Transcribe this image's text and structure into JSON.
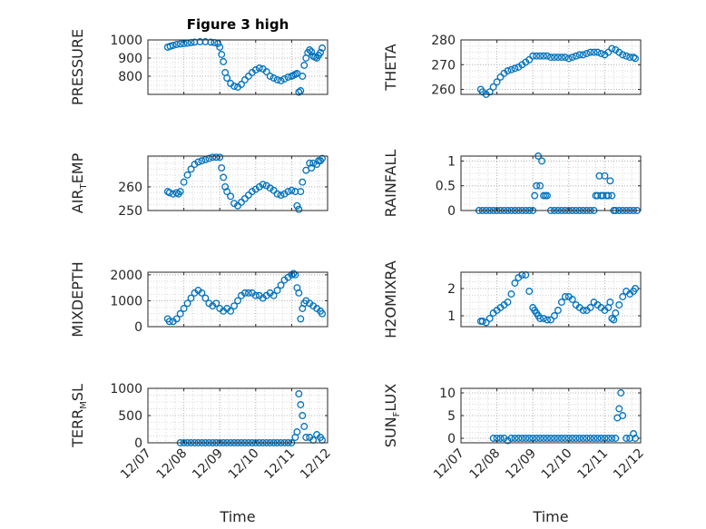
{
  "chart_data": [
    {
      "type": "scatter",
      "ylabel": "PRESSURE",
      "title": "Figure 3 high",
      "ylim": [
        700,
        1000
      ],
      "yticks": [
        800,
        900,
        1000
      ],
      "xrange": [
        "12/07",
        "12/12"
      ],
      "xlabel": "",
      "grid": true,
      "marker": "open-circle",
      "color": "#0072BD",
      "x": [
        7.55,
        7.62,
        7.7,
        7.8,
        7.9,
        8.0,
        8.1,
        8.2,
        8.3,
        8.45,
        8.6,
        8.75,
        8.85,
        8.95,
        9.0,
        9.05,
        9.1,
        9.15,
        9.2,
        9.3,
        9.4,
        9.5,
        9.6,
        9.7,
        9.8,
        9.9,
        10.0,
        10.1,
        10.2,
        10.3,
        10.4,
        10.5,
        10.6,
        10.7,
        10.8,
        10.9,
        11.0,
        11.05,
        11.1,
        11.15,
        11.2,
        11.25,
        11.3,
        11.35,
        11.4,
        11.45,
        11.5,
        11.55,
        11.6,
        11.65,
        11.7,
        11.75,
        11.8,
        11.85
      ],
      "y": [
        960,
        965,
        970,
        975,
        978,
        980,
        982,
        985,
        988,
        990,
        990,
        988,
        985,
        980,
        960,
        920,
        880,
        820,
        790,
        760,
        745,
        740,
        755,
        780,
        800,
        820,
        835,
        845,
        840,
        825,
        800,
        790,
        780,
        775,
        785,
        795,
        800,
        805,
        810,
        815,
        712,
        720,
        800,
        860,
        900,
        930,
        945,
        935,
        910,
        905,
        900,
        915,
        930,
        955
      ]
    },
    {
      "type": "scatter",
      "ylabel": "THETA",
      "ylim": [
        258,
        280
      ],
      "yticks": [
        260,
        270,
        280
      ],
      "xrange": [
        "12/07",
        "12/12"
      ],
      "xlabel": "",
      "grid": true,
      "marker": "open-circle",
      "color": "#0072BD",
      "x": [
        7.55,
        7.6,
        7.7,
        7.8,
        7.9,
        8.0,
        8.1,
        8.2,
        8.3,
        8.4,
        8.5,
        8.6,
        8.7,
        8.8,
        8.9,
        9.0,
        9.1,
        9.2,
        9.3,
        9.4,
        9.5,
        9.6,
        9.7,
        9.8,
        9.9,
        10.0,
        10.1,
        10.2,
        10.3,
        10.4,
        10.5,
        10.6,
        10.7,
        10.8,
        10.9,
        11.0,
        11.1,
        11.2,
        11.3,
        11.4,
        11.5,
        11.6,
        11.7,
        11.8,
        11.85
      ],
      "y": [
        260,
        259,
        258,
        259,
        261,
        263,
        265,
        266.5,
        267.5,
        268,
        268.5,
        269,
        270,
        271,
        272,
        273.5,
        273.5,
        273.5,
        273.5,
        273.5,
        273,
        273,
        273,
        273,
        273,
        272.5,
        273,
        273.5,
        274,
        274,
        274.5,
        275,
        275,
        275,
        274.5,
        274,
        275,
        276.5,
        276,
        275,
        274,
        273.5,
        273,
        273,
        272.5
      ]
    },
    {
      "type": "scatter",
      "ylabel": "AIR_TEMP",
      "ylabel_display": {
        "main": "AIR",
        "sub": "T",
        "rest": "EMP"
      },
      "ylim": [
        250,
        273
      ],
      "yticks": [
        250,
        260
      ],
      "xrange": [
        "12/07",
        "12/12"
      ],
      "xlabel": "",
      "grid": true,
      "marker": "open-circle",
      "color": "#0072BD",
      "x": [
        7.55,
        7.6,
        7.7,
        7.8,
        7.85,
        7.9,
        8.0,
        8.1,
        8.2,
        8.3,
        8.4,
        8.5,
        8.6,
        8.7,
        8.8,
        8.9,
        9.0,
        9.05,
        9.1,
        9.15,
        9.2,
        9.3,
        9.4,
        9.5,
        9.6,
        9.7,
        9.8,
        9.9,
        10.0,
        10.1,
        10.2,
        10.3,
        10.4,
        10.5,
        10.6,
        10.7,
        10.8,
        10.9,
        11.0,
        11.1,
        11.15,
        11.2,
        11.25,
        11.3,
        11.4,
        11.5,
        11.55,
        11.6,
        11.7,
        11.75,
        11.8,
        11.85
      ],
      "y": [
        258,
        257.5,
        257,
        257.5,
        257,
        258,
        262,
        265,
        267.5,
        269.5,
        270.5,
        271,
        271.5,
        272,
        272.5,
        272.5,
        272.5,
        268,
        264,
        260,
        258,
        256,
        253,
        252,
        253.5,
        255,
        256.5,
        258,
        259,
        260,
        261,
        260.5,
        259.5,
        258.5,
        257,
        256.5,
        257,
        258,
        258.5,
        258,
        252,
        250.5,
        258,
        262,
        267,
        270,
        268,
        270,
        269.5,
        271,
        271,
        272
      ]
    },
    {
      "type": "scatter",
      "ylabel": "RAINFALL",
      "ylim": [
        0,
        1.1
      ],
      "yticks": [
        0,
        0.5,
        1
      ],
      "xrange": [
        "12/07",
        "12/12"
      ],
      "xlabel": "",
      "grid": true,
      "marker": "open-circle",
      "color": "#0072BD",
      "x": [
        7.5,
        7.6,
        7.7,
        7.8,
        7.9,
        8.0,
        8.1,
        8.2,
        8.3,
        8.4,
        8.5,
        8.6,
        8.7,
        8.8,
        8.9,
        9.0,
        9.05,
        9.1,
        9.15,
        9.2,
        9.25,
        9.3,
        9.35,
        9.4,
        9.5,
        9.6,
        9.7,
        9.8,
        9.9,
        10.0,
        10.1,
        10.2,
        10.3,
        10.4,
        10.5,
        10.6,
        10.7,
        10.75,
        10.8,
        10.85,
        10.9,
        10.95,
        11.0,
        11.05,
        11.1,
        11.15,
        11.2,
        11.25,
        11.3,
        11.4,
        11.5,
        11.6,
        11.7,
        11.8,
        11.9
      ],
      "y": [
        0,
        0,
        0,
        0,
        0,
        0,
        0,
        0,
        0,
        0,
        0,
        0,
        0,
        0,
        0,
        0,
        0.3,
        0.5,
        1.1,
        0.5,
        1.0,
        0.3,
        0.3,
        0.3,
        0,
        0,
        0,
        0,
        0,
        0,
        0,
        0,
        0,
        0,
        0,
        0,
        0,
        0.3,
        0.3,
        0.7,
        0.3,
        0.3,
        0.7,
        0.3,
        0.3,
        0.6,
        0.3,
        0,
        0,
        0,
        0,
        0,
        0,
        0,
        0
      ]
    },
    {
      "type": "scatter",
      "ylabel": "MIXDEPTH",
      "ylim": [
        0,
        2100
      ],
      "yticks": [
        0,
        1000,
        2000
      ],
      "xrange": [
        "12/07",
        "12/12"
      ],
      "xlabel": "",
      "grid": true,
      "marker": "open-circle",
      "color": "#0072BD",
      "x": [
        7.55,
        7.6,
        7.7,
        7.8,
        7.9,
        8.0,
        8.1,
        8.2,
        8.3,
        8.4,
        8.5,
        8.6,
        8.7,
        8.8,
        8.9,
        9.0,
        9.1,
        9.2,
        9.3,
        9.4,
        9.5,
        9.6,
        9.7,
        9.8,
        9.9,
        10.0,
        10.1,
        10.2,
        10.3,
        10.4,
        10.5,
        10.6,
        10.7,
        10.8,
        10.9,
        11.0,
        11.05,
        11.1,
        11.15,
        11.2,
        11.25,
        11.3,
        11.35,
        11.4,
        11.5,
        11.6,
        11.7,
        11.8,
        11.85
      ],
      "y": [
        300,
        200,
        200,
        300,
        500,
        700,
        900,
        1100,
        1300,
        1400,
        1300,
        1100,
        900,
        800,
        900,
        700,
        600,
        700,
        600,
        800,
        1000,
        1200,
        1300,
        1300,
        1300,
        1200,
        1200,
        1100,
        1200,
        1300,
        1200,
        1400,
        1600,
        1800,
        1900,
        2000,
        2050,
        2000,
        1500,
        1300,
        300,
        700,
        900,
        1000,
        900,
        800,
        700,
        600,
        500
      ]
    },
    {
      "type": "scatter",
      "ylabel": "H2OMIXRA",
      "ylim": [
        0.6,
        2.6
      ],
      "yticks": [
        1,
        2
      ],
      "xrange": [
        "12/07",
        "12/12"
      ],
      "xlabel": "",
      "grid": true,
      "marker": "open-circle",
      "color": "#0072BD",
      "x": [
        7.55,
        7.6,
        7.7,
        7.8,
        7.9,
        8.0,
        8.1,
        8.2,
        8.3,
        8.4,
        8.5,
        8.6,
        8.7,
        8.8,
        8.9,
        9.0,
        9.05,
        9.1,
        9.15,
        9.2,
        9.3,
        9.4,
        9.5,
        9.6,
        9.7,
        9.8,
        9.9,
        10.0,
        10.1,
        10.2,
        10.3,
        10.4,
        10.5,
        10.6,
        10.7,
        10.8,
        10.9,
        11.0,
        11.1,
        11.15,
        11.2,
        11.25,
        11.3,
        11.4,
        11.5,
        11.6,
        11.7,
        11.8,
        11.85
      ],
      "y": [
        0.8,
        0.8,
        0.75,
        0.9,
        1.1,
        1.2,
        1.3,
        1.4,
        1.5,
        1.8,
        2.2,
        2.4,
        2.5,
        2.5,
        1.9,
        1.3,
        1.2,
        1.1,
        1.0,
        0.9,
        0.9,
        0.85,
        0.85,
        1.0,
        1.2,
        1.5,
        1.7,
        1.7,
        1.6,
        1.4,
        1.3,
        1.2,
        1.2,
        1.3,
        1.5,
        1.4,
        1.3,
        1.2,
        1.3,
        1.5,
        0.9,
        0.85,
        1.1,
        1.4,
        1.7,
        1.9,
        1.8,
        1.9,
        2.0
      ]
    },
    {
      "type": "scatter",
      "ylabel": "TERR_MSL",
      "ylabel_display": {
        "main": "TERR",
        "sub": "M",
        "rest": "SL"
      },
      "ylim": [
        0,
        1000
      ],
      "yticks": [
        0,
        500,
        1000
      ],
      "xrange": [
        "12/07",
        "12/12"
      ],
      "xlabel": "Time",
      "xticks": [
        "12/07",
        "12/08",
        "12/09",
        "12/10",
        "12/11",
        "12/12"
      ],
      "grid": true,
      "marker": "open-circle",
      "color": "#0072BD",
      "x": [
        7.9,
        8.0,
        8.1,
        8.2,
        8.3,
        8.4,
        8.5,
        8.6,
        8.7,
        8.8,
        8.9,
        9.0,
        9.1,
        9.2,
        9.3,
        9.4,
        9.5,
        9.6,
        9.7,
        9.8,
        9.9,
        10.0,
        10.1,
        10.2,
        10.3,
        10.4,
        10.5,
        10.6,
        10.7,
        10.8,
        10.9,
        11.0,
        11.1,
        11.15,
        11.2,
        11.25,
        11.3,
        11.35,
        11.4,
        11.5,
        11.6,
        11.7,
        11.8,
        11.85
      ],
      "y": [
        0,
        0,
        0,
        0,
        0,
        0,
        0,
        0,
        0,
        0,
        0,
        0,
        0,
        0,
        0,
        0,
        0,
        0,
        0,
        0,
        0,
        0,
        0,
        0,
        0,
        0,
        0,
        0,
        0,
        0,
        0,
        0,
        100,
        200,
        900,
        700,
        500,
        300,
        100,
        100,
        50,
        150,
        100,
        50
      ]
    },
    {
      "type": "scatter",
      "ylabel": "SUN_FLUX",
      "ylabel_display": {
        "main": "SUN",
        "sub": "F",
        "rest": "LUX"
      },
      "ylim": [
        -1,
        11
      ],
      "yticks": [
        0,
        5,
        10
      ],
      "xrange": [
        "12/07",
        "12/12"
      ],
      "xlabel": "Time",
      "xticks": [
        "12/07",
        "12/08",
        "12/09",
        "12/10",
        "12/11",
        "12/12"
      ],
      "grid": true,
      "marker": "open-circle",
      "color": "#0072BD",
      "x": [
        7.9,
        8.0,
        8.1,
        8.2,
        8.3,
        8.4,
        8.5,
        8.6,
        8.7,
        8.8,
        8.9,
        9.0,
        9.1,
        9.2,
        9.3,
        9.4,
        9.5,
        9.6,
        9.7,
        9.8,
        9.9,
        10.0,
        10.1,
        10.2,
        10.3,
        10.4,
        10.5,
        10.6,
        10.7,
        10.8,
        10.9,
        11.0,
        11.1,
        11.2,
        11.3,
        11.35,
        11.4,
        11.45,
        11.5,
        11.6,
        11.7,
        11.8,
        11.85
      ],
      "y": [
        0,
        0,
        0,
        0,
        -0.5,
        0,
        0,
        0,
        0,
        0,
        0,
        0,
        0,
        0,
        0,
        0,
        0,
        0,
        0,
        0,
        0,
        0,
        0,
        0,
        0,
        0,
        0,
        0,
        0,
        0,
        0,
        0,
        0,
        0,
        0,
        4.5,
        6.5,
        10,
        5,
        0,
        0,
        1,
        0
      ]
    }
  ]
}
